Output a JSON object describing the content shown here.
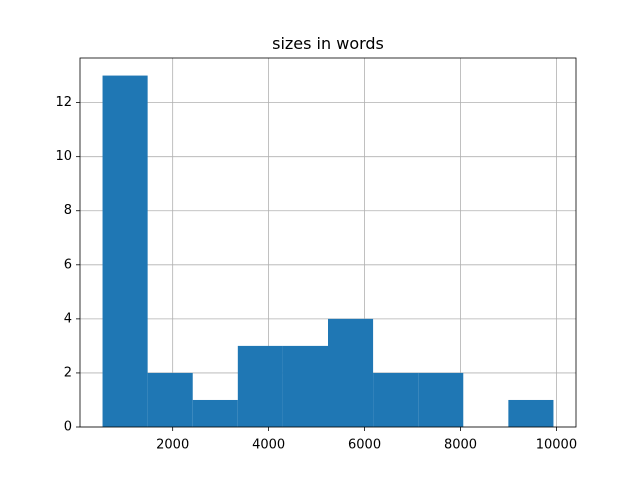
{
  "chart_data": {
    "type": "histogram",
    "title": "sizes in words",
    "bins": [
      538,
      1478,
      2418,
      3358,
      4298,
      5238,
      6178,
      7118,
      8058,
      8998,
      9938
    ],
    "values": [
      13,
      2,
      1,
      3,
      3,
      4,
      2,
      2,
      0,
      1
    ],
    "color": "#1f77b4",
    "xlim": [
      68,
      10408
    ],
    "xticks": [
      2000,
      4000,
      6000,
      8000,
      10000
    ],
    "ylim": [
      0,
      13.65
    ],
    "yticks": [
      0,
      2,
      4,
      6,
      8,
      10,
      12
    ],
    "grid": true
  }
}
